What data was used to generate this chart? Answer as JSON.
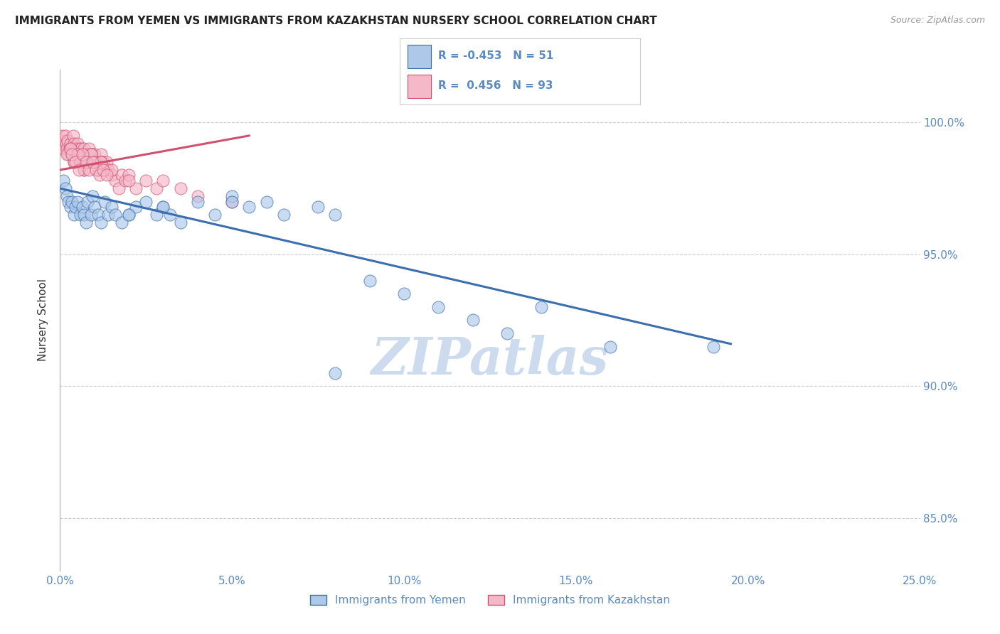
{
  "title": "IMMIGRANTS FROM YEMEN VS IMMIGRANTS FROM KAZAKHSTAN NURSERY SCHOOL CORRELATION CHART",
  "source": "Source: ZipAtlas.com",
  "xlabel_vals": [
    0.0,
    5.0,
    10.0,
    15.0,
    20.0,
    25.0
  ],
  "ylabel_vals": [
    85.0,
    90.0,
    95.0,
    100.0
  ],
  "xlim": [
    0.0,
    25.0
  ],
  "ylim": [
    83.0,
    102.0
  ],
  "ylabel": "Nursery School",
  "legend_label1": "Immigrants from Yemen",
  "legend_label2": "Immigrants from Kazakhstan",
  "r1": "-0.453",
  "n1": "51",
  "r2": "0.456",
  "n2": "93",
  "color_blue": "#adc8e8",
  "color_pink": "#f5b8c8",
  "color_blue_line": "#3a6eaf",
  "color_pink_line": "#d05070",
  "color_text_axis": "#5a8ac0",
  "blue_x": [
    0.1,
    0.15,
    0.2,
    0.25,
    0.3,
    0.35,
    0.4,
    0.45,
    0.5,
    0.6,
    0.65,
    0.7,
    0.75,
    0.8,
    0.9,
    0.95,
    1.0,
    1.1,
    1.2,
    1.3,
    1.4,
    1.5,
    1.6,
    1.8,
    2.0,
    2.2,
    2.5,
    2.8,
    3.0,
    3.2,
    3.5,
    4.0,
    4.5,
    5.0,
    5.5,
    6.0,
    6.5,
    7.5,
    8.0,
    9.0,
    10.0,
    11.0,
    13.0,
    14.0,
    16.0,
    19.0,
    2.0,
    3.0,
    5.0,
    8.0,
    12.0
  ],
  "blue_y": [
    97.8,
    97.5,
    97.2,
    97.0,
    96.8,
    97.0,
    96.5,
    96.8,
    97.0,
    96.5,
    96.8,
    96.5,
    96.2,
    97.0,
    96.5,
    97.2,
    96.8,
    96.5,
    96.2,
    97.0,
    96.5,
    96.8,
    96.5,
    96.2,
    96.5,
    96.8,
    97.0,
    96.5,
    96.8,
    96.5,
    96.2,
    97.0,
    96.5,
    97.2,
    96.8,
    97.0,
    96.5,
    96.8,
    96.5,
    94.0,
    93.5,
    93.0,
    92.0,
    93.0,
    91.5,
    91.5,
    96.5,
    96.8,
    97.0,
    90.5,
    92.5
  ],
  "pink_x": [
    0.05,
    0.08,
    0.1,
    0.12,
    0.15,
    0.18,
    0.2,
    0.22,
    0.25,
    0.28,
    0.3,
    0.32,
    0.35,
    0.38,
    0.4,
    0.42,
    0.45,
    0.48,
    0.5,
    0.52,
    0.55,
    0.58,
    0.6,
    0.62,
    0.65,
    0.68,
    0.7,
    0.72,
    0.75,
    0.78,
    0.8,
    0.82,
    0.85,
    0.88,
    0.9,
    0.92,
    0.95,
    0.98,
    1.0,
    1.05,
    1.1,
    1.15,
    1.2,
    1.25,
    1.3,
    1.35,
    1.4,
    1.5,
    1.6,
    1.7,
    1.8,
    1.9,
    2.0,
    2.2,
    2.5,
    2.8,
    3.0,
    3.5,
    4.0,
    5.0,
    0.3,
    0.4,
    0.5,
    0.6,
    0.7,
    0.8,
    0.9,
    1.0,
    1.1,
    1.2,
    0.2,
    0.3,
    0.4,
    0.5,
    0.6,
    0.7,
    0.8,
    0.9,
    1.0,
    1.2,
    1.5,
    2.0,
    0.35,
    0.45,
    0.55,
    0.65,
    0.75,
    0.85,
    0.95,
    1.05,
    1.15,
    1.25,
    1.35
  ],
  "pink_y": [
    99.2,
    99.5,
    99.0,
    99.3,
    99.5,
    99.2,
    99.0,
    99.3,
    98.8,
    99.0,
    99.2,
    98.8,
    99.0,
    99.5,
    99.2,
    99.0,
    98.8,
    99.0,
    99.2,
    98.8,
    99.0,
    98.8,
    98.5,
    99.0,
    98.8,
    98.5,
    99.0,
    98.8,
    98.5,
    98.8,
    98.5,
    98.8,
    99.0,
    98.5,
    98.8,
    98.5,
    98.8,
    98.5,
    98.8,
    98.5,
    98.2,
    98.5,
    98.8,
    98.5,
    98.2,
    98.5,
    98.2,
    98.0,
    97.8,
    97.5,
    98.0,
    97.8,
    98.0,
    97.5,
    97.8,
    97.5,
    97.8,
    97.5,
    97.2,
    97.0,
    99.0,
    98.5,
    98.8,
    98.5,
    98.2,
    98.5,
    98.8,
    98.5,
    98.2,
    98.5,
    98.8,
    99.0,
    98.5,
    98.8,
    98.5,
    98.2,
    98.5,
    98.8,
    98.5,
    98.5,
    98.2,
    97.8,
    98.8,
    98.5,
    98.2,
    98.8,
    98.5,
    98.2,
    98.5,
    98.2,
    98.0,
    98.2,
    98.0
  ],
  "blue_line_x": [
    0.0,
    19.5
  ],
  "blue_line_y": [
    97.5,
    91.6
  ],
  "pink_line_x": [
    0.0,
    5.5
  ],
  "pink_line_y": [
    98.2,
    99.5
  ],
  "watermark": "ZIPatlas",
  "watermark_color": "#c8d8ee",
  "background_color": "#ffffff",
  "grid_color": "#cccccc",
  "spine_color": "#aaaaaa"
}
